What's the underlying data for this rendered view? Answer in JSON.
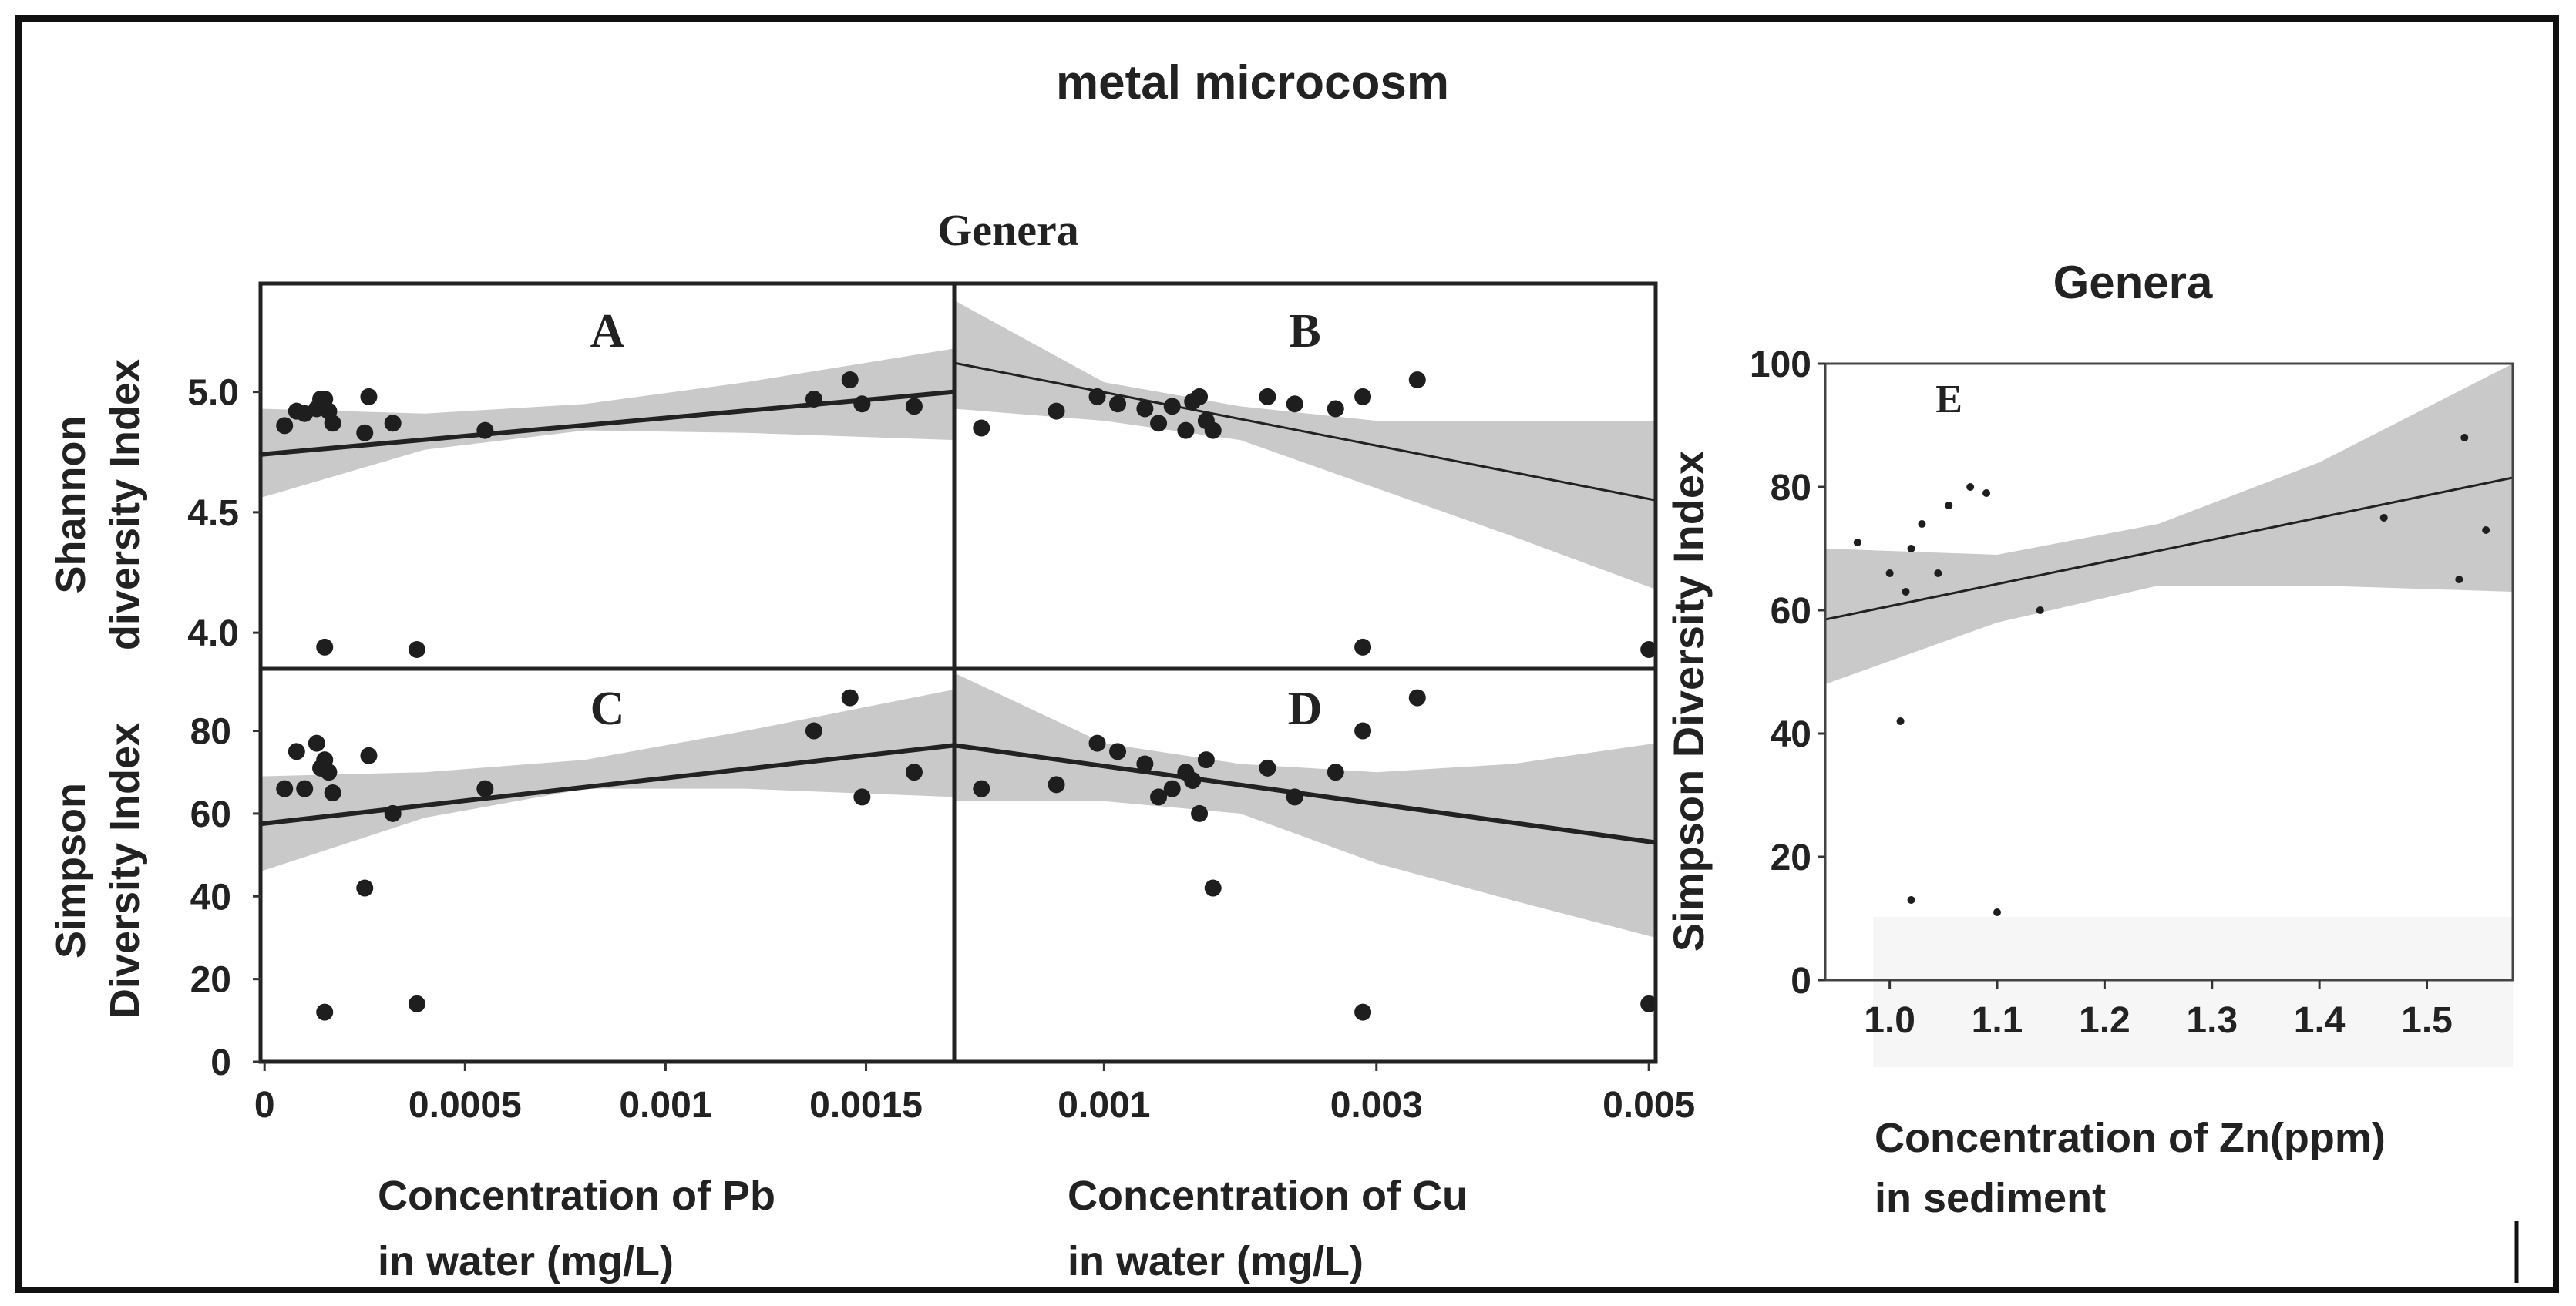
{
  "figure": {
    "title": "metal microcosm",
    "left_group_title": "Genera",
    "right_group_title": "Genera"
  },
  "colors": {
    "band": "#c9c9c9",
    "line": "#222222",
    "point": "#1e1e1e",
    "frame": "#111111"
  },
  "chart_data": [
    {
      "panel": "A",
      "type": "scatter",
      "title": "A",
      "xlabel": "Concentration of Pb\nin water (mg/L)",
      "ylabel": "Shannon\ndiversity Index",
      "xlim": [
        -1e-05,
        0.00172
      ],
      "ylim": [
        3.85,
        5.45
      ],
      "yticks": [
        "4.0",
        "4.5",
        "5.0"
      ],
      "ytick_values": [
        4.0,
        4.5,
        5.0
      ],
      "x": [
        5e-05,
        8e-05,
        0.0001,
        0.00013,
        0.00014,
        0.00015,
        0.00016,
        0.00017,
        0.00025,
        0.00026,
        0.00032,
        0.00055,
        0.00137,
        0.00146,
        0.00149,
        0.00162,
        0.00015,
        0.00038
      ],
      "y": [
        4.86,
        4.92,
        4.91,
        4.93,
        4.97,
        4.97,
        4.92,
        4.87,
        4.83,
        4.98,
        4.87,
        4.84,
        4.97,
        5.05,
        4.95,
        4.94,
        3.94,
        3.93
      ],
      "fit": {
        "x": [
          -1e-05,
          0.00172
        ],
        "y": [
          4.74,
          5.0
        ]
      },
      "band_x": [
        -1e-05,
        0.0004,
        0.0008,
        0.0012,
        0.00172
      ],
      "band_lower": [
        4.56,
        4.76,
        4.84,
        4.83,
        4.8
      ],
      "band_upper": [
        4.93,
        4.91,
        4.95,
        5.04,
        5.18
      ]
    },
    {
      "panel": "B",
      "type": "scatter",
      "title": "B",
      "xlabel": "Concentration of Cu\nin water (mg/L)",
      "ylabel": "",
      "xlim": [
        -0.0001,
        0.00505
      ],
      "ylim": [
        3.85,
        5.45
      ],
      "x": [
        0.0001,
        0.00065,
        0.00095,
        0.0011,
        0.0013,
        0.0014,
        0.0015,
        0.0016,
        0.00165,
        0.0017,
        0.00175,
        0.0018,
        0.0022,
        0.0024,
        0.0027,
        0.0029,
        0.0033,
        0.0029,
        0.005
      ],
      "y": [
        4.85,
        4.92,
        4.98,
        4.95,
        4.93,
        4.87,
        4.94,
        4.84,
        4.96,
        4.98,
        4.88,
        4.84,
        4.98,
        4.95,
        4.93,
        4.98,
        5.05,
        3.94,
        3.93
      ],
      "fit": {
        "x": [
          -0.0001,
          0.00505
        ],
        "y": [
          5.12,
          4.55
        ]
      },
      "band_x": [
        -0.0001,
        0.001,
        0.002,
        0.003,
        0.004,
        0.00505
      ],
      "band_lower": [
        4.93,
        4.88,
        4.8,
        4.6,
        4.4,
        4.18
      ],
      "band_upper": [
        5.38,
        5.04,
        4.94,
        4.88,
        4.88,
        4.88
      ]
    },
    {
      "panel": "C",
      "type": "scatter",
      "title": "C",
      "xlabel": "Concentration of Pb\nin water (mg/L)",
      "ylabel": "Simpson\nDiversity Index",
      "xlim": [
        -1e-05,
        0.00172
      ],
      "ylim": [
        0,
        95
      ],
      "xticks": [
        "0",
        "0.0005",
        "0.001",
        "0.0015"
      ],
      "xtick_values": [
        0,
        0.0005,
        0.001,
        0.0015
      ],
      "yticks": [
        "0",
        "20",
        "40",
        "60",
        "80"
      ],
      "ytick_values": [
        0,
        20,
        40,
        60,
        80
      ],
      "x": [
        5e-05,
        8e-05,
        0.0001,
        0.00013,
        0.00014,
        0.00015,
        0.00016,
        0.00017,
        0.00025,
        0.00026,
        0.00032,
        0.00055,
        0.00137,
        0.00146,
        0.00149,
        0.00162,
        0.00015,
        0.00038
      ],
      "y": [
        66,
        75,
        66,
        77,
        71,
        73,
        70,
        65,
        42,
        74,
        60,
        66,
        80,
        88,
        64,
        70,
        12,
        14
      ],
      "fit": {
        "x": [
          -1e-05,
          0.00172
        ],
        "y": [
          57.5,
          76.5
        ]
      },
      "band_x": [
        -1e-05,
        0.0004,
        0.0008,
        0.0012,
        0.00172
      ],
      "band_lower": [
        46,
        59,
        66,
        66,
        64
      ],
      "band_upper": [
        69,
        70,
        73,
        80,
        90
      ]
    },
    {
      "panel": "D",
      "type": "scatter",
      "title": "D",
      "xlabel": "Concentration of Cu\nin water (mg/L)",
      "ylabel": "",
      "xlim": [
        -0.0001,
        0.00505
      ],
      "ylim": [
        0,
        95
      ],
      "xticks": [
        "0.001",
        "0.003",
        "0.005"
      ],
      "xtick_values": [
        0.001,
        0.003,
        0.005
      ],
      "x": [
        0.0001,
        0.00065,
        0.00095,
        0.0011,
        0.0013,
        0.0014,
        0.0015,
        0.0016,
        0.00165,
        0.0017,
        0.00175,
        0.0018,
        0.0022,
        0.0024,
        0.0027,
        0.0029,
        0.0033,
        0.0029,
        0.005
      ],
      "y": [
        66,
        67,
        77,
        75,
        72,
        64,
        66,
        70,
        68,
        60,
        73,
        42,
        71,
        64,
        70,
        80,
        88,
        12,
        14
      ],
      "fit": {
        "x": [
          -0.0001,
          0.00505
        ],
        "y": [
          76.5,
          53
        ]
      },
      "band_x": [
        -0.0001,
        0.001,
        0.002,
        0.003,
        0.004,
        0.00505
      ],
      "band_lower": [
        63,
        63,
        60,
        48,
        39,
        30
      ],
      "band_upper": [
        94,
        77,
        72,
        70,
        72,
        77
      ]
    },
    {
      "panel": "E",
      "type": "scatter",
      "title": "E",
      "xlabel": "Concentration of Zn(ppm)\nin sediment",
      "ylabel": "Simpson Diversity Index",
      "xlim": [
        0.94,
        1.58
      ],
      "ylim": [
        0,
        100
      ],
      "xticks": [
        "1.0",
        "1.1",
        "1.2",
        "1.3",
        "1.4",
        "1.5"
      ],
      "xtick_values": [
        1.0,
        1.1,
        1.2,
        1.3,
        1.4,
        1.5
      ],
      "yticks": [
        "0",
        "20",
        "40",
        "60",
        "80",
        "100"
      ],
      "ytick_values": [
        0,
        20,
        40,
        60,
        80,
        100
      ],
      "x": [
        0.97,
        1.0,
        1.02,
        1.03,
        1.045,
        1.055,
        1.075,
        1.09,
        1.015,
        1.01,
        1.14,
        1.46,
        1.535,
        1.555,
        1.53,
        1.02,
        1.1
      ],
      "y": [
        71,
        66,
        70,
        74,
        66,
        77,
        80,
        79,
        63,
        42,
        60,
        75,
        88,
        73,
        65,
        13,
        11
      ],
      "fit": {
        "x": [
          0.94,
          1.58
        ],
        "y": [
          58.5,
          81.5
        ]
      },
      "band_x": [
        0.94,
        1.1,
        1.25,
        1.4,
        1.58
      ],
      "band_lower": [
        48,
        58,
        64,
        64,
        63
      ],
      "band_upper": [
        70,
        69,
        74,
        84,
        100
      ]
    }
  ]
}
